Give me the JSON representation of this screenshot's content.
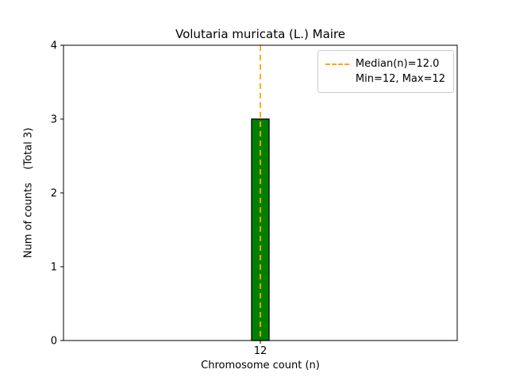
{
  "chart_data": {
    "type": "bar",
    "title": "Volutaria muricata (L.) Maire",
    "xlabel": "Chromosome count (n)",
    "ylabel": "Num of counts    (Total 3)",
    "categories": [
      "12"
    ],
    "values": [
      3
    ],
    "ylim": [
      0,
      4
    ],
    "yticks": [
      "0",
      "1",
      "2",
      "3",
      "4"
    ],
    "grid": false,
    "bar_color": "#008000",
    "bar_edge_color": "#000000",
    "median_line": {
      "x": "12",
      "color": "#ffa500",
      "style": "dashed"
    },
    "legend_position": "upper right",
    "legend": [
      {
        "label": "Median(n)=12.0",
        "sample": "orange-dashed-line"
      },
      {
        "label": "Min=12, Max=12",
        "sample": "none"
      }
    ]
  },
  "colors": {
    "background": "#ffffff",
    "axis": "#000000",
    "legend_border": "#cccccc"
  }
}
